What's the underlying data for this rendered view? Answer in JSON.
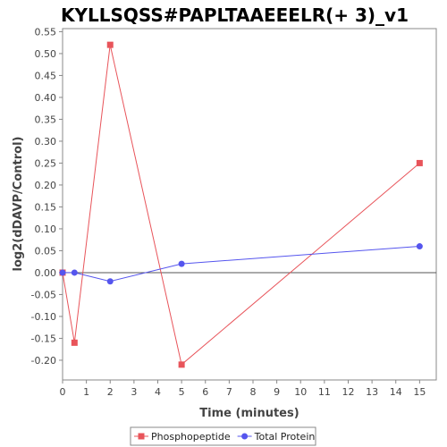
{
  "chart_data": {
    "type": "line",
    "title": "KYLLSQSS#PAPLTAAEEELR(+ 3)_v1",
    "xlabel": "Time (minutes)",
    "ylabel": "log2(dDAVP/Control)",
    "xlim": [
      0,
      15.7
    ],
    "ylim": [
      -0.245,
      0.557
    ],
    "xticks": [
      0,
      1,
      2,
      3,
      4,
      5,
      6,
      7,
      8,
      9,
      10,
      11,
      12,
      13,
      14,
      15
    ],
    "yticks": [
      -0.2,
      -0.15,
      -0.1,
      -0.05,
      0.0,
      0.05,
      0.1,
      0.15,
      0.2,
      0.25,
      0.3,
      0.35,
      0.4,
      0.45,
      0.5,
      0.55
    ],
    "ytick_labels": [
      "-0.20",
      "-0.15",
      "-0.10",
      "-0.05",
      "0.00",
      "0.05",
      "0.10",
      "0.15",
      "0.20",
      "0.25",
      "0.30",
      "0.35",
      "0.40",
      "0.45",
      "0.50",
      "0.55"
    ],
    "zero_line": true,
    "grid": false,
    "legend_position": "bottom",
    "series": [
      {
        "name": "Phosphopeptide",
        "color": "#e8545a",
        "marker": "square",
        "x": [
          0,
          0.5,
          2,
          5,
          15
        ],
        "y": [
          0.0,
          -0.16,
          0.52,
          -0.21,
          0.25
        ]
      },
      {
        "name": "Total Protein",
        "color": "#5555ee",
        "marker": "circle",
        "x": [
          0,
          0.5,
          2,
          5,
          15
        ],
        "y": [
          0.0,
          0.0,
          -0.02,
          0.02,
          0.06
        ]
      }
    ]
  }
}
